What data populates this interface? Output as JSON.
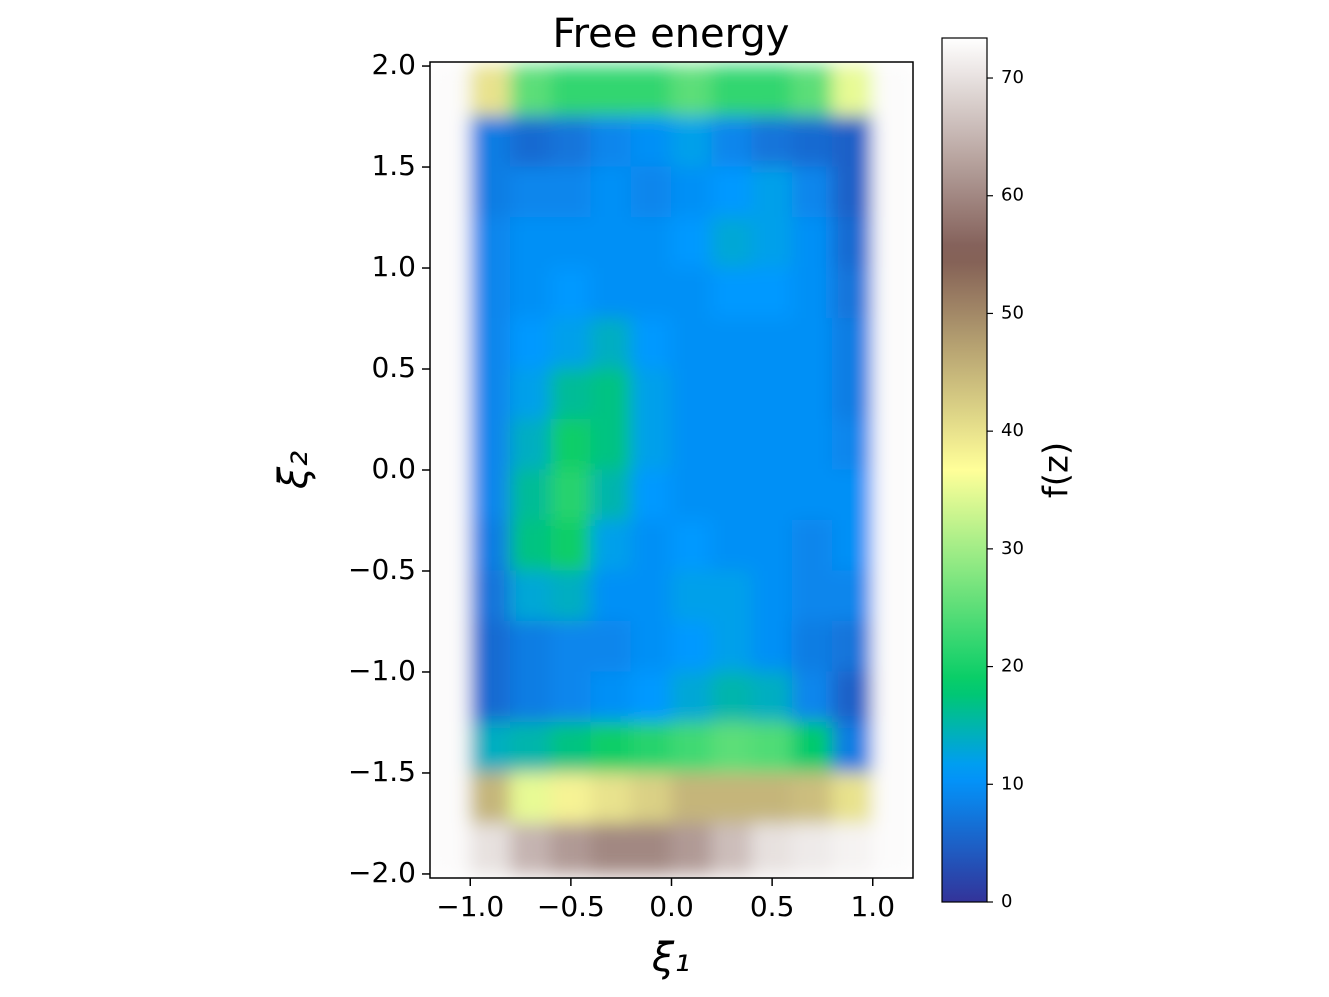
{
  "chart_data": {
    "type": "heatmap",
    "title": "Free energy",
    "x_label": "ξ₁",
    "y_label": "ξ₂",
    "colorbar_label": "f(z)",
    "cmap": "terrain",
    "x": [
      -1.1,
      -0.9,
      -0.7,
      -0.5,
      -0.3,
      -0.1,
      0.1,
      0.3,
      0.5,
      0.7,
      0.9,
      1.1
    ],
    "y": [
      1.875,
      1.625,
      1.375,
      1.125,
      0.875,
      0.625,
      0.375,
      0.125,
      -0.125,
      -0.375,
      -0.625,
      -0.875,
      -1.125,
      -1.375,
      -1.625,
      -1.875
    ],
    "z": [
      [
        73,
        40,
        25,
        22,
        22,
        22,
        25,
        22,
        22,
        25,
        35,
        73
      ],
      [
        73,
        8,
        6,
        7,
        9,
        10,
        12,
        9,
        7,
        6,
        5,
        73
      ],
      [
        73,
        8,
        9,
        9,
        10,
        9,
        10,
        11,
        12,
        9,
        5,
        73
      ],
      [
        73,
        9,
        10,
        10,
        10,
        10,
        11,
        13,
        12,
        10,
        6,
        73
      ],
      [
        73,
        9,
        10,
        11,
        10,
        10,
        10,
        11,
        11,
        10,
        7,
        73
      ],
      [
        73,
        9,
        11,
        12,
        14,
        11,
        10,
        10,
        10,
        10,
        8,
        73
      ],
      [
        73,
        9,
        12,
        16,
        17,
        12,
        10,
        10,
        10,
        10,
        8,
        73
      ],
      [
        73,
        9,
        14,
        19,
        17,
        12,
        10,
        10,
        10,
        10,
        9,
        73
      ],
      [
        73,
        9,
        16,
        21,
        15,
        11,
        10,
        10,
        10,
        10,
        10,
        73
      ],
      [
        73,
        8,
        17,
        19,
        12,
        10,
        11,
        10,
        10,
        9,
        10,
        73
      ],
      [
        73,
        7,
        13,
        14,
        10,
        10,
        12,
        12,
        10,
        9,
        9,
        73
      ],
      [
        73,
        6,
        8,
        9,
        9,
        10,
        11,
        12,
        10,
        8,
        7,
        73
      ],
      [
        73,
        6,
        8,
        9,
        10,
        11,
        13,
        15,
        14,
        9,
        5,
        73
      ],
      [
        73,
        14,
        15,
        17,
        19,
        21,
        23,
        25,
        24,
        18,
        8,
        73
      ],
      [
        73,
        45,
        35,
        38,
        40,
        42,
        45,
        45,
        45,
        44,
        40,
        73
      ],
      [
        73,
        70,
        65,
        62,
        60,
        60,
        62,
        66,
        70,
        71,
        72,
        73
      ]
    ],
    "xlim": [
      -1.2,
      1.2
    ],
    "ylim": [
      -2.02,
      2.02
    ],
    "xticks": [
      {
        "value": -1.0,
        "label": "−1.0"
      },
      {
        "value": -0.5,
        "label": "−0.5"
      },
      {
        "value": 0.0,
        "label": "0.0"
      },
      {
        "value": 0.5,
        "label": "0.5"
      },
      {
        "value": 1.0,
        "label": "1.0"
      }
    ],
    "yticks": [
      {
        "value": -2.0,
        "label": "−2.0"
      },
      {
        "value": -1.5,
        "label": "−1.5"
      },
      {
        "value": -1.0,
        "label": "−1.0"
      },
      {
        "value": -0.5,
        "label": "−0.5"
      },
      {
        "value": 0.0,
        "label": "0.0"
      },
      {
        "value": 0.5,
        "label": "0.5"
      },
      {
        "value": 1.0,
        "label": "1.0"
      },
      {
        "value": 1.5,
        "label": "1.5"
      },
      {
        "value": 2.0,
        "label": "2.0"
      }
    ],
    "zlim": [
      0,
      73.4
    ],
    "zticks": [
      0,
      10,
      20,
      30,
      40,
      50,
      60,
      70
    ]
  }
}
